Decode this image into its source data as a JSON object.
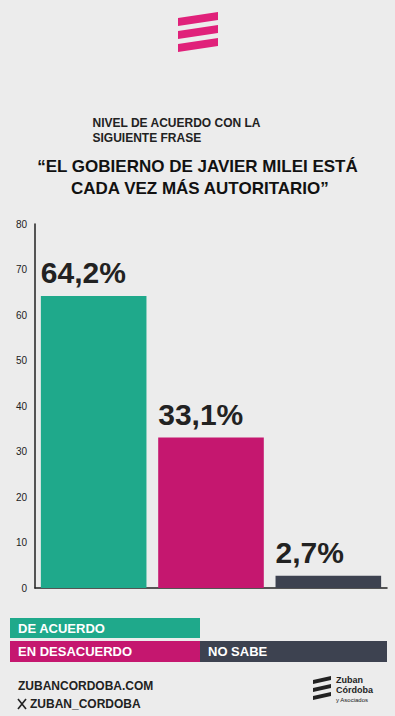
{
  "chart_data": {
    "type": "bar",
    "title": "NIVEL DE ACUERDO CON LA SIGUIENTE FRASE",
    "subtitle": "“EL GOBIERNO DE JAVIER MILEI ESTÁ CADA VEZ MÁS AUTORITARIO”",
    "categories": [
      "DE ACUERDO",
      "EN DESACUERDO",
      "NO SABE"
    ],
    "values": [
      64.2,
      33.1,
      2.7
    ],
    "value_labels": [
      "64,2%",
      "33,1%",
      "2,7%"
    ],
    "colors": [
      "#1fa98b",
      "#c5176f",
      "#3d4250"
    ],
    "ylim": [
      0,
      80
    ],
    "yticks": [
      0,
      10,
      20,
      30,
      40,
      50,
      60,
      70,
      80
    ],
    "grid": false,
    "data_labels": true,
    "tick_labels": "y"
  },
  "footer": {
    "website": "ZUBANCORDOBA.COM",
    "social": "ZUBAN_CORDOBA",
    "brand": [
      "Zuban",
      "Córdoba",
      "y Asociados"
    ]
  }
}
